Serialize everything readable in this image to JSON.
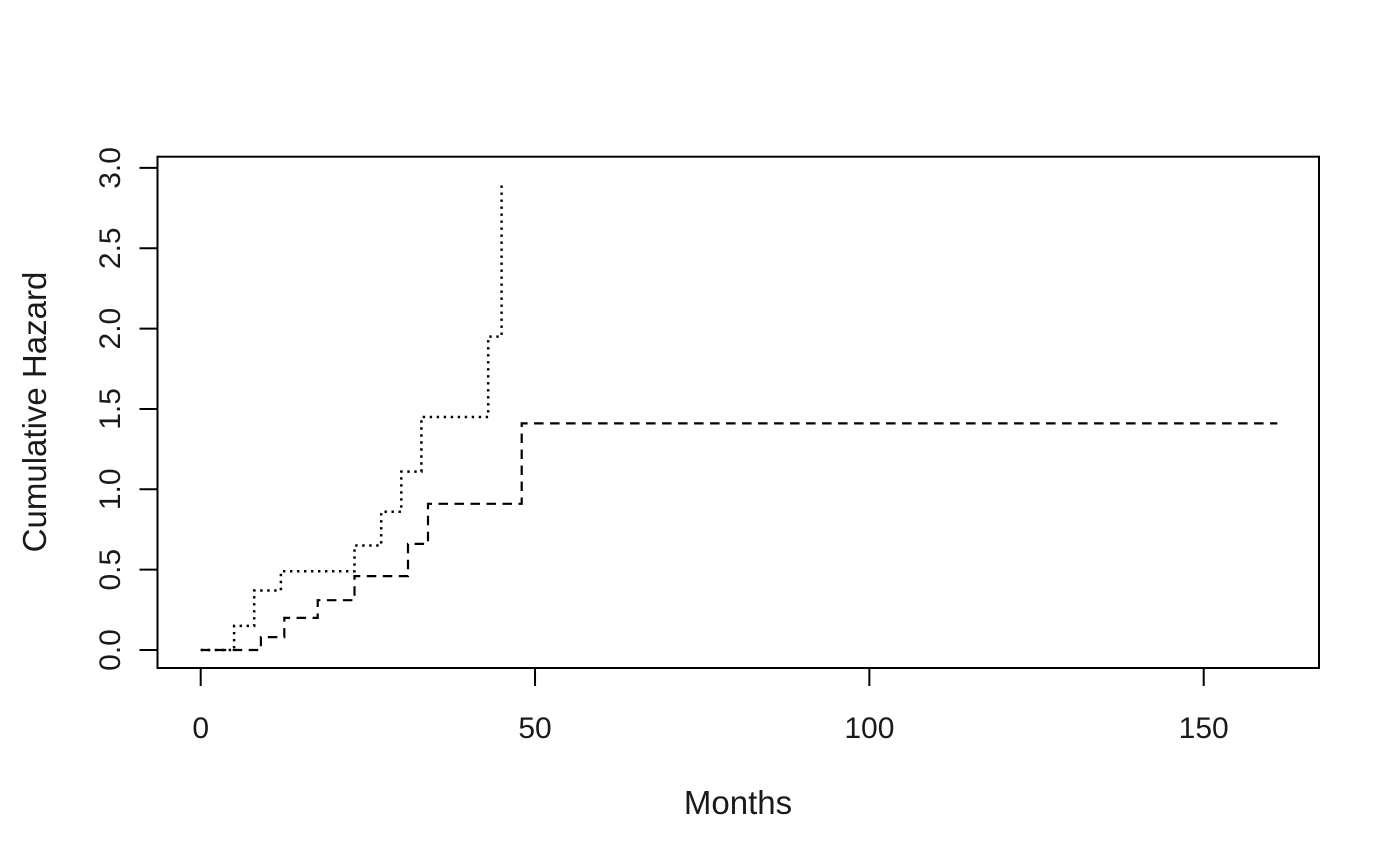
{
  "figure": {
    "background": "#ffffff",
    "foreground": "#000000"
  },
  "chart_data": {
    "type": "line",
    "subtype": "step-function (cumulative hazard curves)",
    "title": "",
    "xlabel": "Months",
    "ylabel": "Cumulative Hazard",
    "xlim": [
      -6.5,
      167.5
    ],
    "ylim": [
      -0.11,
      3.07
    ],
    "x_ticks": [
      0,
      50,
      100,
      150
    ],
    "x_tick_labels": [
      "0",
      "50",
      "100",
      "150"
    ],
    "y_ticks": [
      0.0,
      0.5,
      1.0,
      1.5,
      2.0,
      2.5,
      3.0
    ],
    "y_tick_labels": [
      "0.0",
      "0.5",
      "1.0",
      "1.5",
      "2.0",
      "2.5",
      "3.0"
    ],
    "grid": false,
    "legend": "none",
    "series": [
      {
        "name": "dotted",
        "line_style": "dotted",
        "color": "#000000",
        "points": [
          [
            0,
            0
          ],
          [
            5,
            0
          ],
          [
            5,
            0.15
          ],
          [
            8,
            0.15
          ],
          [
            8,
            0.37
          ],
          [
            12,
            0.37
          ],
          [
            12,
            0.49
          ],
          [
            23,
            0.49
          ],
          [
            23,
            0.65
          ],
          [
            27,
            0.65
          ],
          [
            27,
            0.86
          ],
          [
            30,
            0.86
          ],
          [
            30,
            1.11
          ],
          [
            33,
            1.11
          ],
          [
            33,
            1.45
          ],
          [
            43,
            1.45
          ],
          [
            43,
            1.95
          ],
          [
            45,
            1.95
          ],
          [
            45,
            2.91
          ]
        ]
      },
      {
        "name": "dashed",
        "line_style": "dashed",
        "color": "#000000",
        "points": [
          [
            0,
            0
          ],
          [
            9,
            0
          ],
          [
            9,
            0.08
          ],
          [
            12.5,
            0.08
          ],
          [
            12.5,
            0.2
          ],
          [
            17.5,
            0.2
          ],
          [
            17.5,
            0.31
          ],
          [
            23,
            0.31
          ],
          [
            23,
            0.46
          ],
          [
            31,
            0.46
          ],
          [
            31,
            0.66
          ],
          [
            34,
            0.66
          ],
          [
            34,
            0.91
          ],
          [
            48,
            0.91
          ],
          [
            48,
            1.41
          ],
          [
            161,
            1.41
          ]
        ]
      }
    ]
  }
}
